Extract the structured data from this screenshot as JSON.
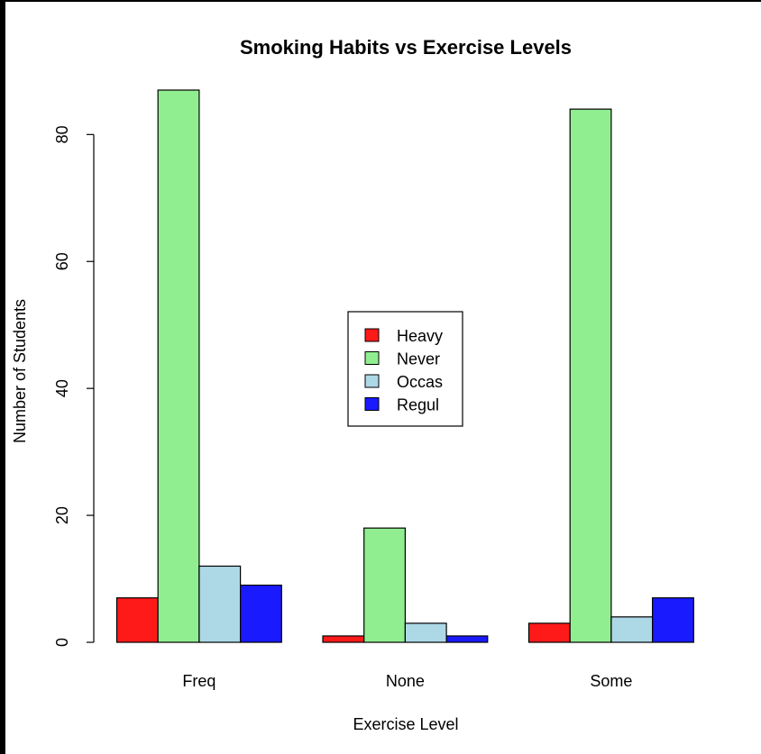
{
  "chart_data": {
    "type": "bar",
    "title": "Smoking Habits vs Exercise Levels",
    "xlabel": "Exercise Level",
    "ylabel": "Number of Students",
    "categories": [
      "Freq",
      "None",
      "Some"
    ],
    "series": [
      {
        "name": "Heavy",
        "color": "#ff1a1a",
        "values": [
          7,
          1,
          3
        ]
      },
      {
        "name": "Never",
        "color": "#90ee90",
        "values": [
          87,
          18,
          84
        ]
      },
      {
        "name": "Occas",
        "color": "#add8e6",
        "values": [
          12,
          3,
          4
        ]
      },
      {
        "name": "Regul",
        "color": "#1a1aff",
        "values": [
          9,
          1,
          7
        ]
      }
    ],
    "yticks": [
      0,
      20,
      40,
      60,
      80
    ],
    "ylim": [
      0,
      87
    ],
    "grid": false,
    "legend_position": "center"
  }
}
